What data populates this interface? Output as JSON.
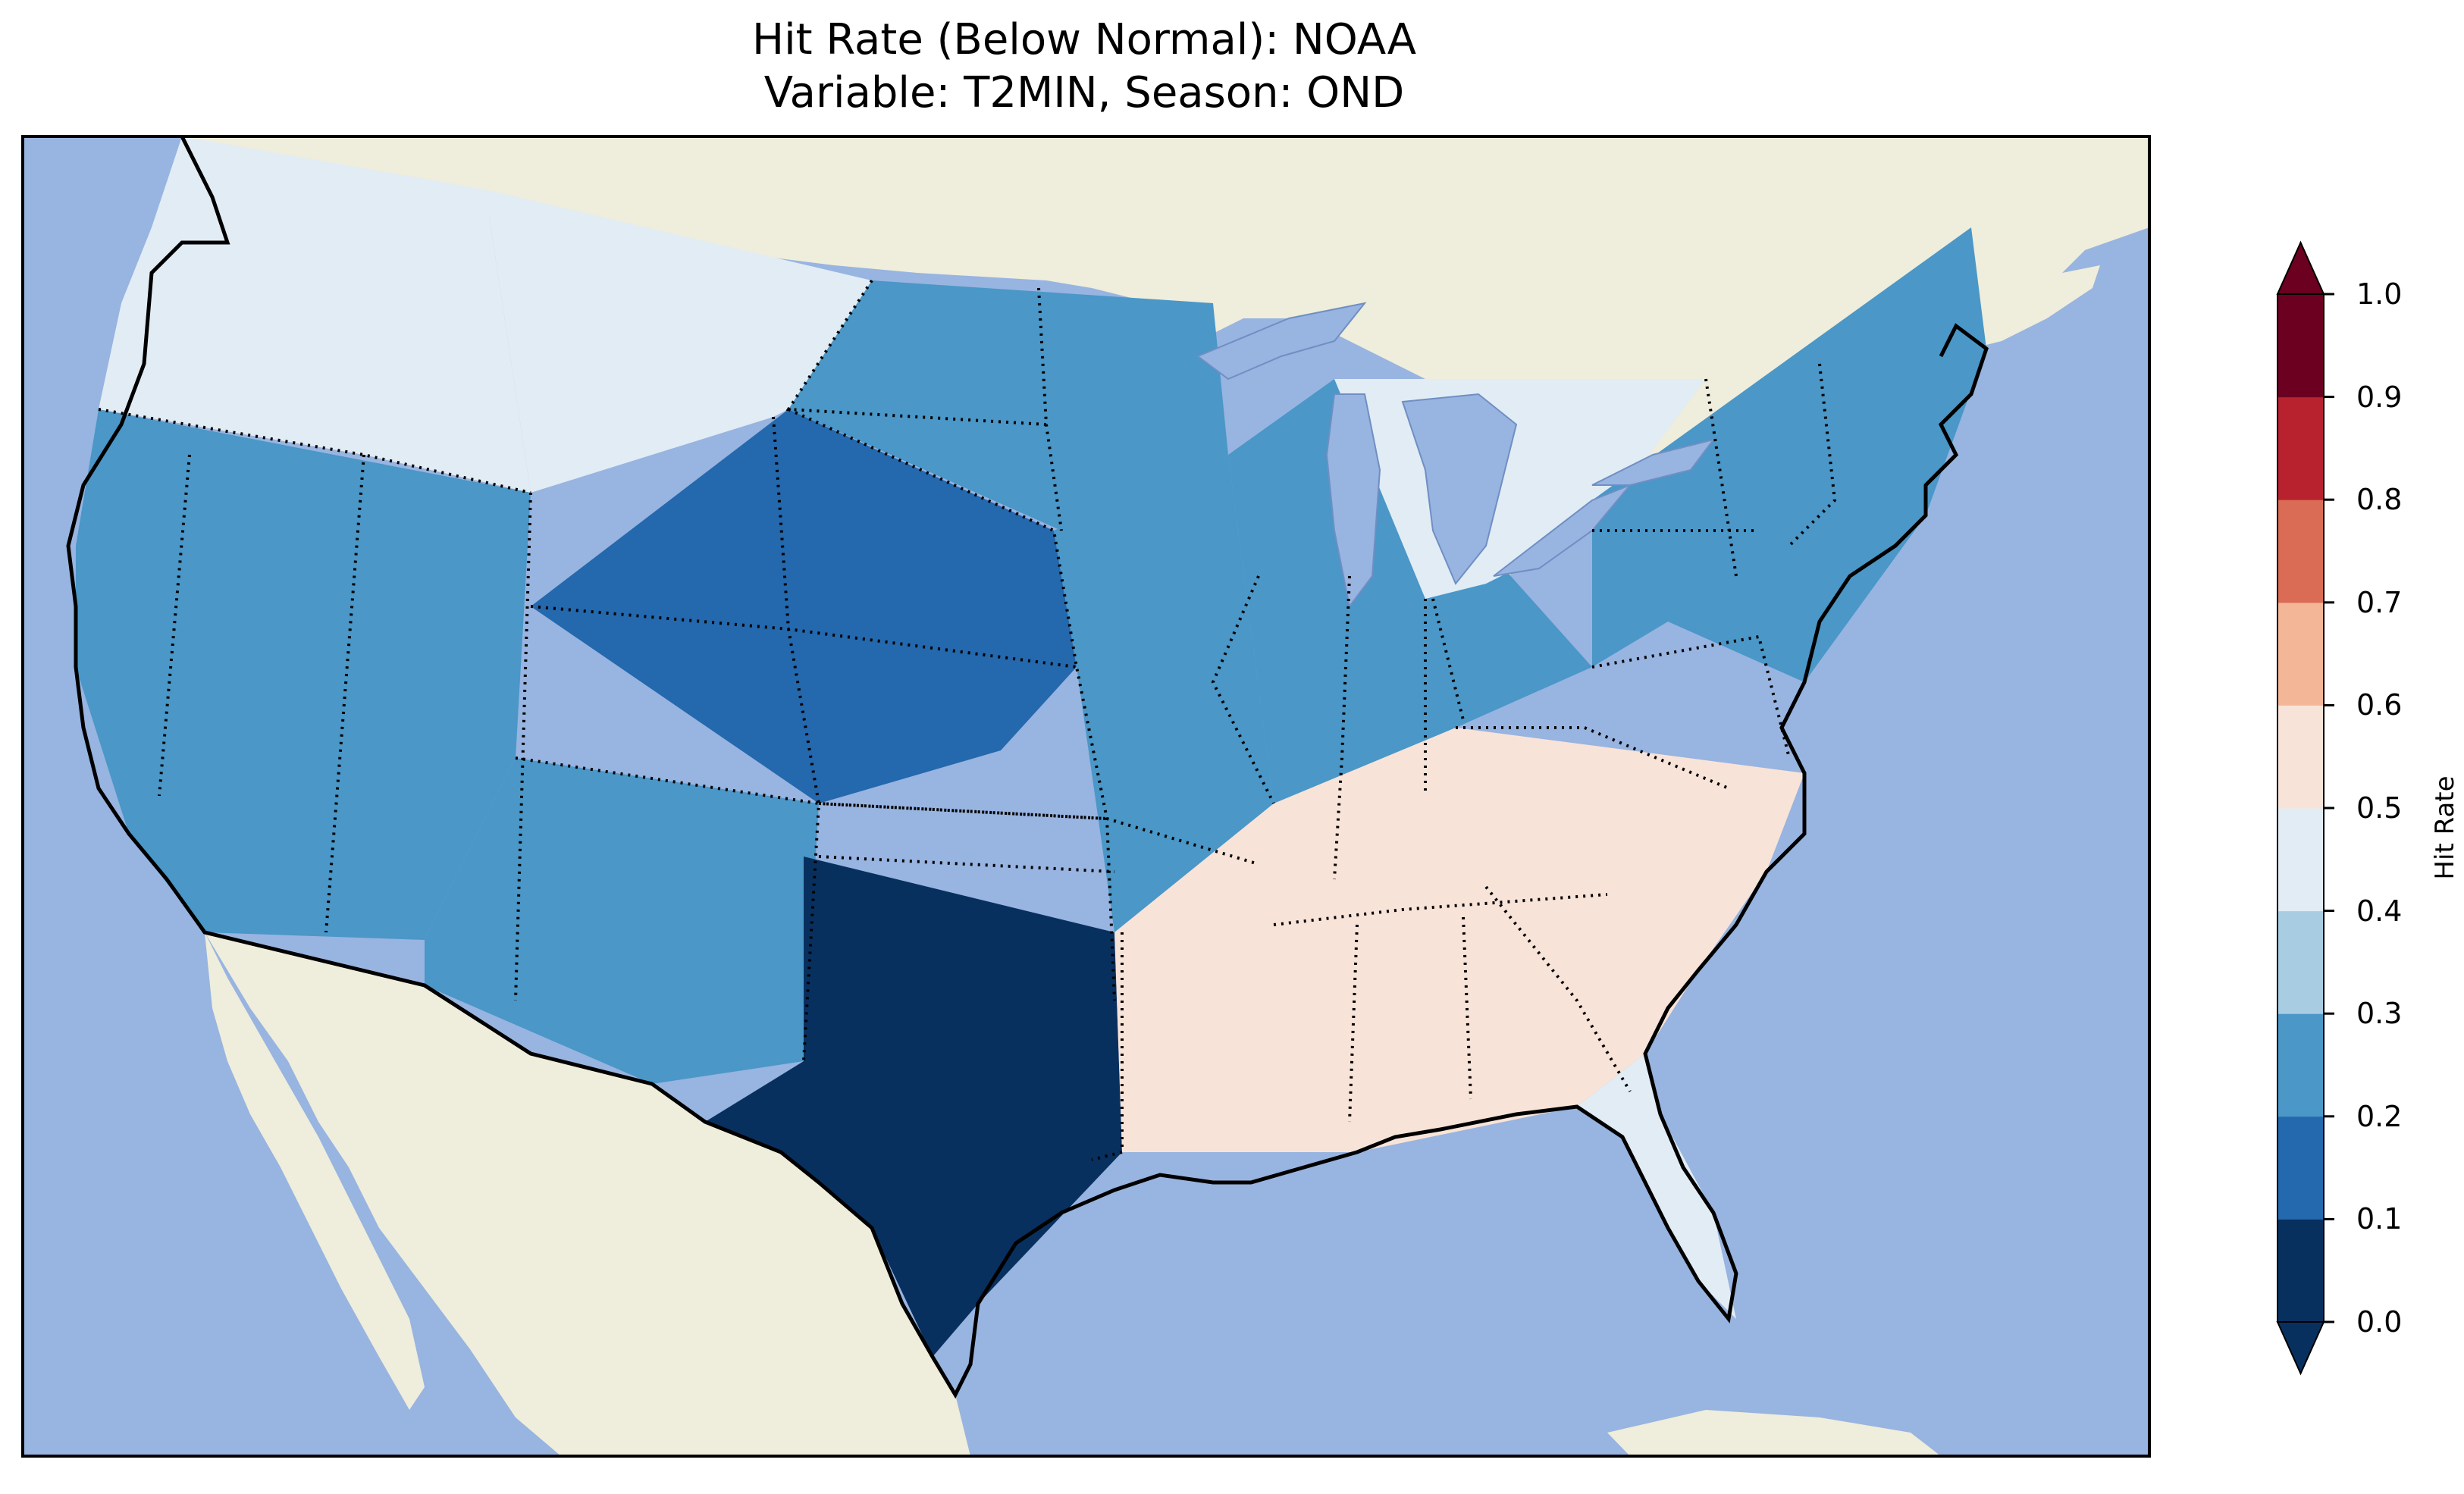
{
  "title": {
    "line1": "Hit Rate (Below Normal): NOAA",
    "line2": "Variable: T2MIN, Season: OND"
  },
  "colors": {
    "ocean": "#98b4e0",
    "foreign_land": "#efeddb",
    "lakes": "#98b4e0",
    "coastline": "#000000"
  },
  "colorbar": {
    "label": "Hit Rate",
    "ticks": [
      "0.0",
      "0.1",
      "0.2",
      "0.3",
      "0.4",
      "0.5",
      "0.6",
      "0.7",
      "0.8",
      "0.9",
      "1.0"
    ],
    "bins": [
      {
        "min": 0.0,
        "max": 0.1,
        "color": "#08305f"
      },
      {
        "min": 0.1,
        "max": 0.2,
        "color": "#2468ad"
      },
      {
        "min": 0.2,
        "max": 0.3,
        "color": "#4a97c8"
      },
      {
        "min": 0.3,
        "max": 0.4,
        "color": "#a8cde3"
      },
      {
        "min": 0.4,
        "max": 0.5,
        "color": "#e2ecf4"
      },
      {
        "min": 0.5,
        "max": 0.6,
        "color": "#f8e3d8"
      },
      {
        "min": 0.6,
        "max": 0.7,
        "color": "#f3b697"
      },
      {
        "min": 0.7,
        "max": 0.8,
        "color": "#da6c55"
      },
      {
        "min": 0.8,
        "max": 0.9,
        "color": "#b8222f"
      },
      {
        "min": 0.9,
        "max": 1.0,
        "color": "#6b0021"
      }
    ],
    "extend": "both"
  },
  "regions": [
    {
      "name": "Pacific Northwest",
      "value": 0.45
    },
    {
      "name": "Northern Rockies",
      "value": 0.45
    },
    {
      "name": "Northern Plains",
      "value": 0.25
    },
    {
      "name": "Great Basin",
      "value": 0.25
    },
    {
      "name": "Central Rockies",
      "value": 0.15
    },
    {
      "name": "Central Plains",
      "value": 0.25
    },
    {
      "name": "Midwest",
      "value": 0.25
    },
    {
      "name": "Great Lakes",
      "value": 0.45
    },
    {
      "name": "Northeast",
      "value": 0.25
    },
    {
      "name": "Southwest",
      "value": 0.25
    },
    {
      "name": "Texas",
      "value": 0.05
    },
    {
      "name": "Southeast",
      "value": 0.55
    },
    {
      "name": "Florida",
      "value": 0.45
    }
  ]
}
